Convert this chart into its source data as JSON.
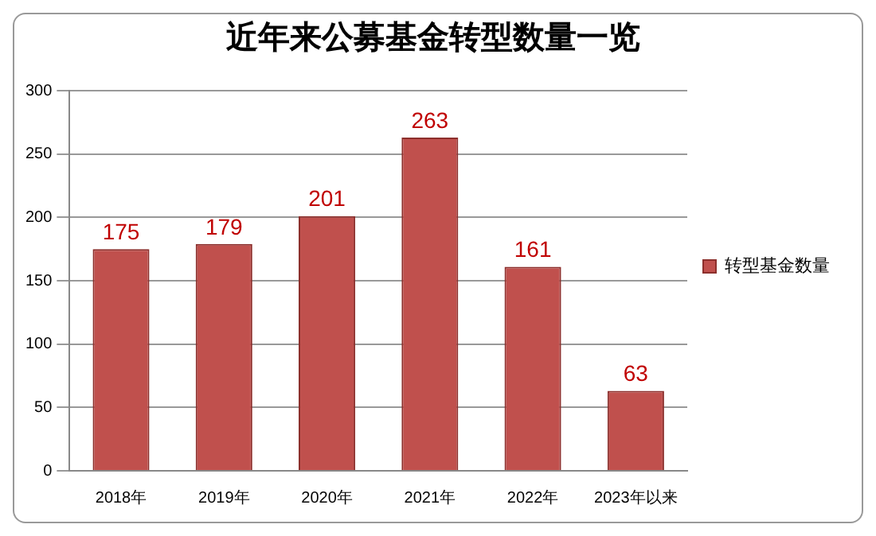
{
  "chart_data": {
    "type": "bar",
    "title": "近年来公募基金转型数量一览",
    "categories": [
      "2018年",
      "2019年",
      "2020年",
      "2021年",
      "2022年",
      "2023年以来"
    ],
    "series": [
      {
        "name": "转型基金数量",
        "color": "#c0504d",
        "values": [
          175,
          179,
          201,
          263,
          161,
          63
        ]
      }
    ],
    "ylim": [
      0,
      300
    ],
    "yticks": [
      0,
      50,
      100,
      150,
      200,
      250,
      300
    ],
    "grid": "y",
    "legend": "right",
    "data_labels": true
  }
}
